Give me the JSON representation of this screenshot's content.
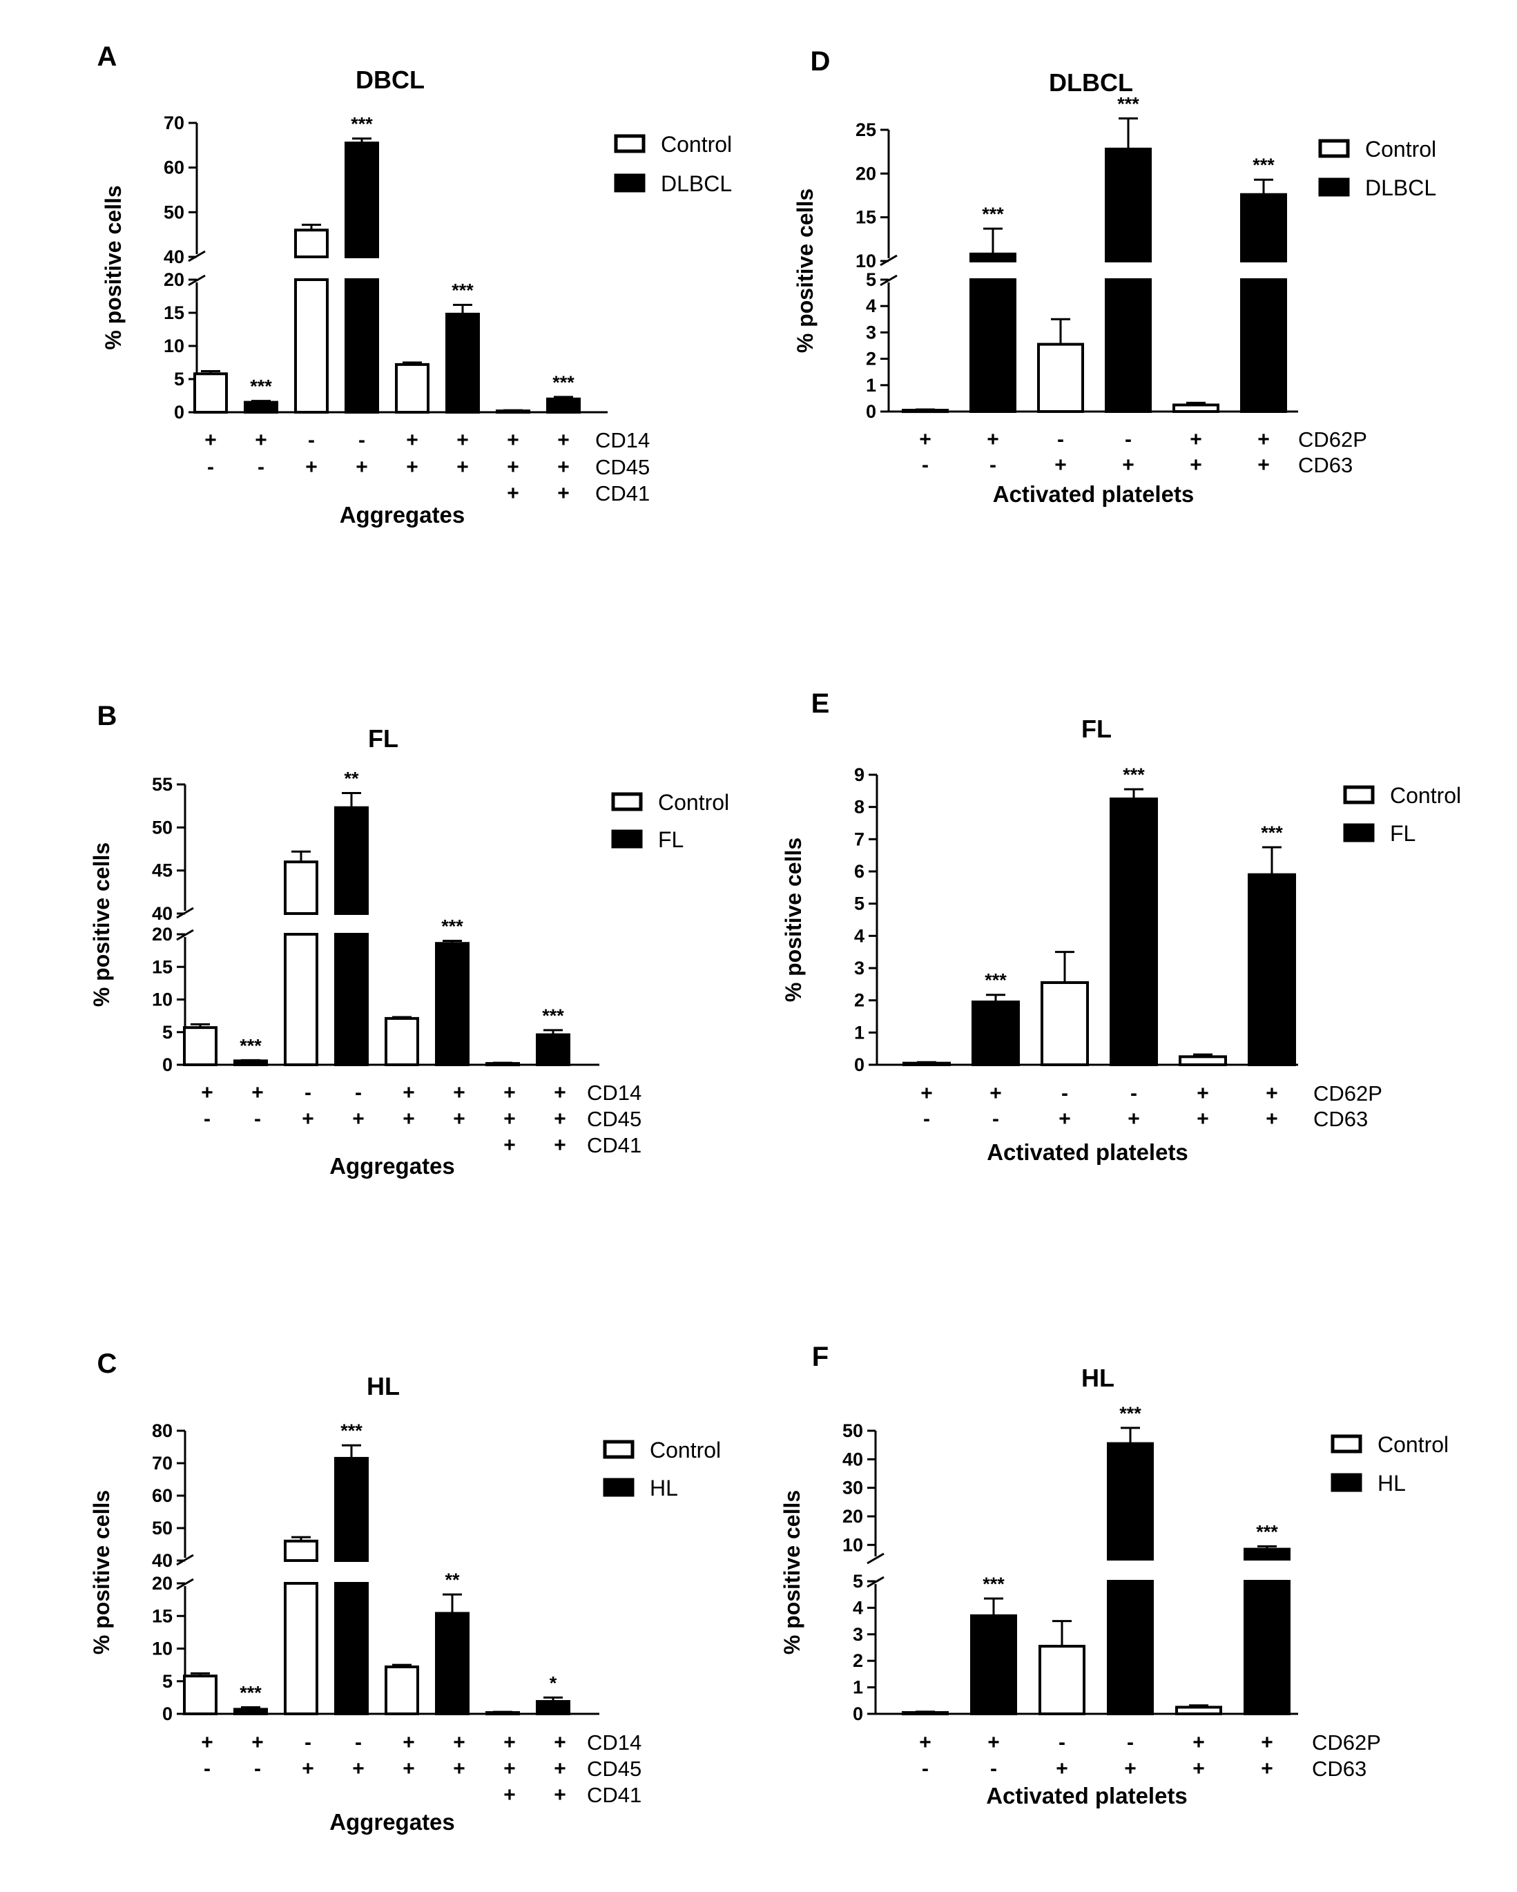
{
  "colors": {
    "control": "#ffffff",
    "disease": "#000000",
    "axis": "#000000"
  },
  "chart_data": [
    {
      "panel": "A",
      "type": "bar",
      "title": "DBCL",
      "ylabel": "% positive cells",
      "xlabel": "Aggregates",
      "ylim_lower": [
        0,
        20
      ],
      "ylim_upper": [
        40,
        70
      ],
      "yticks_lower": [
        "0",
        "5",
        "10",
        "15",
        "20"
      ],
      "yticks_upper": [
        "40",
        "50",
        "60",
        "70"
      ],
      "legend": [
        "Control",
        "DLBCL"
      ],
      "markers": [
        "CD14",
        "CD45",
        "CD41"
      ],
      "signs": [
        [
          "+",
          "-",
          ""
        ],
        [
          "+",
          "-",
          ""
        ],
        [
          "-",
          "+",
          ""
        ],
        [
          "-",
          "+",
          ""
        ],
        [
          "+",
          "+",
          ""
        ],
        [
          "+",
          "+",
          ""
        ],
        [
          "+",
          "+",
          "+"
        ],
        [
          "+",
          "+",
          "+"
        ]
      ],
      "bars": [
        {
          "series": "Control",
          "value": 5.8,
          "err": 0.4,
          "sig": ""
        },
        {
          "series": "DLBCL",
          "value": 1.5,
          "err": 0.2,
          "sig": "***"
        },
        {
          "series": "Control",
          "value": 46,
          "err": 1.2,
          "sig": ""
        },
        {
          "series": "DLBCL",
          "value": 65.5,
          "err": 1.0,
          "sig": "***"
        },
        {
          "series": "Control",
          "value": 7.2,
          "err": 0.3,
          "sig": ""
        },
        {
          "series": "DLBCL",
          "value": 14.8,
          "err": 1.4,
          "sig": "***"
        },
        {
          "series": "Control",
          "value": 0.2,
          "err": 0.1,
          "sig": ""
        },
        {
          "series": "DLBCL",
          "value": 2.0,
          "err": 0.3,
          "sig": "***"
        }
      ]
    },
    {
      "panel": "B",
      "type": "bar",
      "title": "FL",
      "ylabel": "% positive cells",
      "xlabel": "Aggregates",
      "ylim_lower": [
        0,
        20
      ],
      "ylim_upper": [
        40,
        55
      ],
      "yticks_lower": [
        "0",
        "5",
        "10",
        "15",
        "20"
      ],
      "yticks_upper": [
        "40",
        "45",
        "50",
        "55"
      ],
      "legend": [
        "Control",
        "FL"
      ],
      "markers": [
        "CD14",
        "CD45",
        "CD41"
      ],
      "signs": [
        [
          "+",
          "-",
          ""
        ],
        [
          "+",
          "-",
          ""
        ],
        [
          "-",
          "+",
          ""
        ],
        [
          "-",
          "+",
          ""
        ],
        [
          "+",
          "+",
          ""
        ],
        [
          "+",
          "+",
          ""
        ],
        [
          "+",
          "+",
          "+"
        ],
        [
          "+",
          "+",
          "+"
        ]
      ],
      "bars": [
        {
          "series": "Control",
          "value": 5.7,
          "err": 0.5,
          "sig": ""
        },
        {
          "series": "FL",
          "value": 0.6,
          "err": 0.1,
          "sig": "***"
        },
        {
          "series": "Control",
          "value": 46,
          "err": 1.2,
          "sig": ""
        },
        {
          "series": "FL",
          "value": 52.3,
          "err": 1.7,
          "sig": "**"
        },
        {
          "series": "Control",
          "value": 7.1,
          "err": 0.2,
          "sig": ""
        },
        {
          "series": "FL",
          "value": 18.6,
          "err": 0.4,
          "sig": "***"
        },
        {
          "series": "Control",
          "value": 0.2,
          "err": 0.1,
          "sig": ""
        },
        {
          "series": "FL",
          "value": 4.6,
          "err": 0.7,
          "sig": "***"
        }
      ]
    },
    {
      "panel": "C",
      "type": "bar",
      "title": "HL",
      "ylabel": "% positive cells",
      "xlabel": "Aggregates",
      "ylim_lower": [
        0,
        20
      ],
      "ylim_upper": [
        40,
        80
      ],
      "yticks_lower": [
        "0",
        "5",
        "10",
        "15",
        "20"
      ],
      "yticks_upper": [
        "40",
        "50",
        "60",
        "70",
        "80"
      ],
      "legend": [
        "Control",
        "HL"
      ],
      "markers": [
        "CD14",
        "CD45",
        "CD41"
      ],
      "signs": [
        [
          "+",
          "-",
          ""
        ],
        [
          "+",
          "-",
          ""
        ],
        [
          "-",
          "+",
          ""
        ],
        [
          "-",
          "+",
          ""
        ],
        [
          "+",
          "+",
          ""
        ],
        [
          "+",
          "+",
          ""
        ],
        [
          "+",
          "+",
          "+"
        ],
        [
          "+",
          "+",
          "+"
        ]
      ],
      "bars": [
        {
          "series": "Control",
          "value": 5.8,
          "err": 0.4,
          "sig": ""
        },
        {
          "series": "HL",
          "value": 0.7,
          "err": 0.3,
          "sig": "***"
        },
        {
          "series": "Control",
          "value": 46,
          "err": 1.2,
          "sig": ""
        },
        {
          "series": "HL",
          "value": 71.5,
          "err": 4.0,
          "sig": "***"
        },
        {
          "series": "Control",
          "value": 7.2,
          "err": 0.3,
          "sig": ""
        },
        {
          "series": "HL",
          "value": 15.4,
          "err": 2.9,
          "sig": "**"
        },
        {
          "series": "Control",
          "value": 0.2,
          "err": 0.1,
          "sig": ""
        },
        {
          "series": "HL",
          "value": 1.9,
          "err": 0.6,
          "sig": "*"
        }
      ]
    },
    {
      "panel": "D",
      "type": "bar",
      "title": "DLBCL",
      "ylabel": "% positive cells",
      "xlabel": "Activated platelets",
      "ylim_lower": [
        0,
        5
      ],
      "ylim_upper": [
        10,
        25
      ],
      "yticks_lower": [
        "0",
        "1",
        "2",
        "3",
        "4",
        "5"
      ],
      "yticks_upper": [
        "10",
        "15",
        "20",
        "25"
      ],
      "legend": [
        "Control",
        "DLBCL"
      ],
      "markers": [
        "CD62P",
        "CD63"
      ],
      "signs": [
        [
          "+",
          "-"
        ],
        [
          "+",
          "-"
        ],
        [
          "-",
          "+"
        ],
        [
          "-",
          "+"
        ],
        [
          "+",
          "+"
        ],
        [
          "+",
          "+"
        ]
      ],
      "bars": [
        {
          "series": "Control",
          "value": 0.05,
          "err": 0.03,
          "sig": ""
        },
        {
          "series": "DLBCL",
          "value": 10.8,
          "err": 2.9,
          "sig": "***"
        },
        {
          "series": "Control",
          "value": 2.55,
          "err": 0.95,
          "sig": ""
        },
        {
          "series": "DLBCL",
          "value": 22.8,
          "err": 3.5,
          "sig": "***"
        },
        {
          "series": "Control",
          "value": 0.25,
          "err": 0.08,
          "sig": ""
        },
        {
          "series": "DLBCL",
          "value": 17.6,
          "err": 1.7,
          "sig": "***"
        }
      ]
    },
    {
      "panel": "E",
      "type": "bar",
      "title": "FL",
      "ylabel": "% positive cells",
      "xlabel": "Activated platelets",
      "ylim": [
        0,
        9
      ],
      "yticks": [
        "0",
        "1",
        "2",
        "3",
        "4",
        "5",
        "6",
        "7",
        "8",
        "9"
      ],
      "legend": [
        "Control",
        "FL"
      ],
      "markers": [
        "CD62P",
        "CD63"
      ],
      "signs": [
        [
          "+",
          "-"
        ],
        [
          "+",
          "-"
        ],
        [
          "-",
          "+"
        ],
        [
          "-",
          "+"
        ],
        [
          "+",
          "+"
        ],
        [
          "+",
          "+"
        ]
      ],
      "bars": [
        {
          "series": "Control",
          "value": 0.05,
          "err": 0.03,
          "sig": ""
        },
        {
          "series": "FL",
          "value": 1.95,
          "err": 0.22,
          "sig": "***"
        },
        {
          "series": "Control",
          "value": 2.55,
          "err": 0.95,
          "sig": ""
        },
        {
          "series": "FL",
          "value": 8.25,
          "err": 0.3,
          "sig": "***"
        },
        {
          "series": "Control",
          "value": 0.25,
          "err": 0.07,
          "sig": ""
        },
        {
          "series": "FL",
          "value": 5.9,
          "err": 0.85,
          "sig": "***"
        }
      ]
    },
    {
      "panel": "F",
      "type": "bar",
      "title": "HL",
      "ylabel": "% positive cells",
      "xlabel": "Activated platelets",
      "ylim_lower": [
        0,
        5
      ],
      "ylim_upper": [
        5,
        50
      ],
      "yticks_lower": [
        "0",
        "1",
        "2",
        "3",
        "4",
        "5"
      ],
      "yticks_upper": [
        "10",
        "20",
        "30",
        "40",
        "50"
      ],
      "legend": [
        "Control",
        "HL"
      ],
      "markers": [
        "CD62P",
        "CD63"
      ],
      "signs": [
        [
          "+",
          "-"
        ],
        [
          "+",
          "-"
        ],
        [
          "-",
          "+"
        ],
        [
          "-",
          "+"
        ],
        [
          "+",
          "+"
        ],
        [
          "+",
          "+"
        ]
      ],
      "bars": [
        {
          "series": "Control",
          "value": 0.05,
          "err": 0.03,
          "sig": ""
        },
        {
          "series": "HL",
          "value": 3.7,
          "err": 0.65,
          "sig": "***"
        },
        {
          "series": "Control",
          "value": 2.55,
          "err": 0.95,
          "sig": ""
        },
        {
          "series": "HL",
          "value": 45.5,
          "err": 5.5,
          "sig": "***"
        },
        {
          "series": "Control",
          "value": 0.25,
          "err": 0.07,
          "sig": ""
        },
        {
          "series": "HL",
          "value": 8.5,
          "err": 1.0,
          "sig": "***"
        }
      ]
    }
  ]
}
